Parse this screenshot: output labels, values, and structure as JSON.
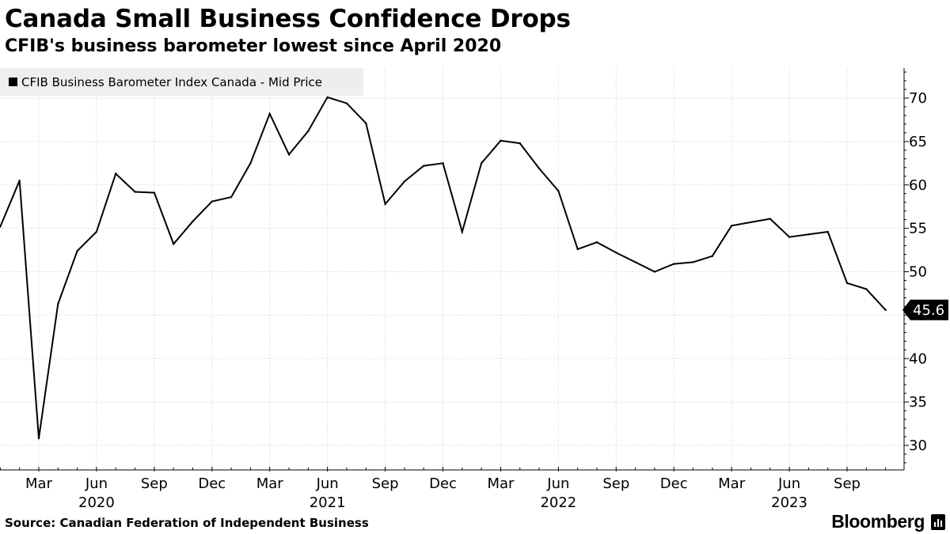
{
  "title": "Canada Small Business Confidence Drops",
  "subtitle": "CFIB's business barometer lowest since April 2020",
  "legend": {
    "label": "CFIB Business Barometer Index Canada - Mid Price"
  },
  "source": "Source: Canadian Federation of Independent Business",
  "brand": "Bloomberg",
  "colors": {
    "line": "#000000",
    "grid": "#d0d0d0",
    "legend_bg": "#eeeeee",
    "label_bg": "#000000"
  },
  "chart_data": {
    "type": "line",
    "title": "Canada Small Business Confidence Drops",
    "subtitle": "CFIB's business barometer lowest since April 2020",
    "xlabel": "",
    "ylabel": "",
    "ylim": [
      27,
      74
    ],
    "yticks": [
      30,
      35,
      40,
      45,
      50,
      55,
      60,
      65,
      70
    ],
    "grid": true,
    "legend_position": "top-left",
    "y_axis_side": "right",
    "x_tick_labels": [
      "Mar",
      "Jun",
      "Sep",
      "Dec",
      "Mar",
      "Jun",
      "Sep",
      "Dec",
      "Mar",
      "Jun",
      "Sep",
      "Dec",
      "Mar",
      "Jun",
      "Sep"
    ],
    "x_tick_months": [
      2,
      5,
      8,
      11,
      14,
      17,
      20,
      23,
      26,
      29,
      32,
      35,
      38,
      41,
      44
    ],
    "year_labels": [
      "2020",
      "2021",
      "2022",
      "2023"
    ],
    "year_label_months": [
      5,
      17,
      29,
      41
    ],
    "last_value_label": "45.6",
    "series": [
      {
        "name": "CFIB Business Barometer Index Canada - Mid Price",
        "start": "2020-01",
        "x_months": [
          0,
          1,
          2,
          3,
          4,
          5,
          6,
          7,
          8,
          9,
          10,
          11,
          12,
          13,
          14,
          15,
          16,
          17,
          18,
          19,
          20,
          21,
          22,
          23,
          24,
          25,
          26,
          27,
          28,
          29,
          30,
          31,
          32,
          33,
          34,
          35,
          36,
          37,
          38,
          39,
          40,
          41,
          42,
          43,
          44,
          45,
          46
        ],
        "values": [
          55.2,
          60.5,
          30.8,
          46.3,
          52.4,
          54.6,
          61.3,
          59.2,
          59.1,
          53.2,
          55.8,
          58.1,
          58.6,
          62.5,
          68.2,
          63.5,
          66.2,
          70.1,
          69.4,
          67.1,
          57.8,
          60.4,
          62.2,
          62.5,
          54.6,
          62.5,
          65.1,
          64.8,
          61.9,
          59.3,
          52.6,
          53.4,
          52.2,
          51.1,
          50.0,
          50.9,
          51.1,
          51.8,
          55.3,
          55.7,
          56.1,
          54.0,
          54.3,
          54.6,
          48.7,
          48.0,
          45.6
        ]
      }
    ]
  }
}
